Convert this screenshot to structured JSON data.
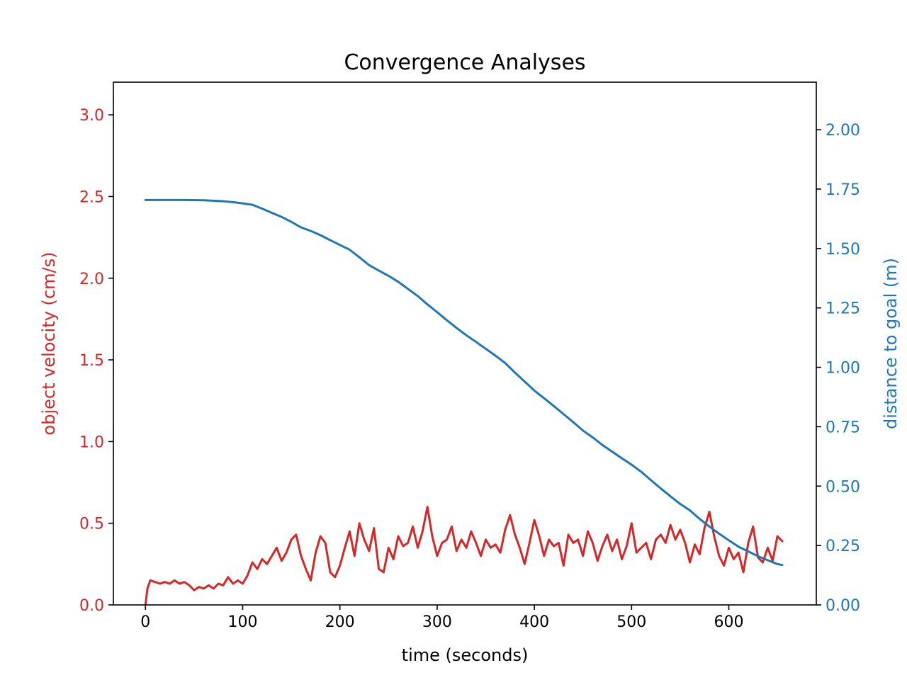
{
  "chart_data": {
    "type": "line",
    "title": "Convergence Analyses",
    "xlabel": "time (seconds)",
    "ylabel_left": "object velocity (cm/s)",
    "ylabel_right": "distance to goal (m)",
    "xlim": [
      -33,
      690
    ],
    "ylim_left": [
      0.0,
      3.2
    ],
    "ylim_right": [
      0.0,
      2.2
    ],
    "x_ticks": [
      0,
      100,
      200,
      300,
      400,
      500,
      600
    ],
    "x_tick_labels": [
      "0",
      "100",
      "200",
      "300",
      "400",
      "500",
      "600"
    ],
    "y_left_ticks": [
      0.0,
      0.5,
      1.0,
      1.5,
      2.0,
      2.5,
      3.0
    ],
    "y_left_tick_labels": [
      "0.0",
      "0.5",
      "1.0",
      "1.5",
      "2.0",
      "2.5",
      "3.0"
    ],
    "y_right_ticks": [
      0.0,
      0.25,
      0.5,
      0.75,
      1.0,
      1.25,
      1.5,
      1.75,
      2.0
    ],
    "y_right_tick_labels": [
      "0.00",
      "0.25",
      "0.50",
      "0.75",
      "1.00",
      "1.25",
      "1.50",
      "1.75",
      "2.00"
    ],
    "grid": false,
    "colors": {
      "velocity": "#d62728",
      "distance": "#1f77b4",
      "axes": "#000000"
    },
    "series": [
      {
        "axis": "left",
        "x": [
          0,
          2,
          5,
          10,
          15,
          20,
          25,
          30,
          35,
          40,
          45,
          50,
          55,
          60,
          65,
          70,
          75,
          80,
          85,
          90,
          95,
          100,
          105,
          110,
          115,
          120,
          125,
          130,
          135,
          140,
          145,
          150,
          155,
          160,
          165,
          170,
          175,
          180,
          185,
          190,
          195,
          200,
          205,
          210,
          215,
          220,
          225,
          230,
          235,
          240,
          245,
          250,
          255,
          260,
          265,
          270,
          275,
          280,
          285,
          290,
          295,
          300,
          305,
          310,
          315,
          320,
          325,
          330,
          335,
          340,
          345,
          350,
          355,
          360,
          365,
          370,
          375,
          380,
          385,
          390,
          395,
          400,
          405,
          410,
          415,
          420,
          425,
          430,
          435,
          440,
          445,
          450,
          455,
          460,
          465,
          470,
          475,
          480,
          485,
          490,
          495,
          500,
          505,
          510,
          515,
          520,
          525,
          530,
          535,
          540,
          545,
          550,
          555,
          560,
          565,
          570,
          575,
          580,
          585,
          590,
          595,
          600,
          605,
          610,
          615,
          620,
          625,
          630,
          635,
          640,
          645,
          650,
          655
        ],
        "values": [
          0.0,
          0.1,
          0.15,
          0.14,
          0.13,
          0.14,
          0.13,
          0.15,
          0.13,
          0.14,
          0.12,
          0.09,
          0.11,
          0.1,
          0.12,
          0.1,
          0.13,
          0.12,
          0.17,
          0.13,
          0.15,
          0.13,
          0.18,
          0.26,
          0.22,
          0.28,
          0.25,
          0.3,
          0.35,
          0.27,
          0.32,
          0.4,
          0.43,
          0.3,
          0.22,
          0.15,
          0.32,
          0.42,
          0.38,
          0.2,
          0.17,
          0.24,
          0.35,
          0.45,
          0.3,
          0.5,
          0.4,
          0.33,
          0.47,
          0.22,
          0.2,
          0.35,
          0.28,
          0.42,
          0.36,
          0.38,
          0.48,
          0.35,
          0.45,
          0.6,
          0.42,
          0.3,
          0.38,
          0.4,
          0.48,
          0.33,
          0.4,
          0.35,
          0.45,
          0.38,
          0.3,
          0.4,
          0.35,
          0.37,
          0.32,
          0.46,
          0.55,
          0.43,
          0.35,
          0.25,
          0.38,
          0.52,
          0.42,
          0.3,
          0.4,
          0.36,
          0.38,
          0.24,
          0.43,
          0.38,
          0.4,
          0.3,
          0.45,
          0.38,
          0.27,
          0.36,
          0.43,
          0.33,
          0.4,
          0.28,
          0.36,
          0.5,
          0.32,
          0.35,
          0.38,
          0.28,
          0.4,
          0.43,
          0.38,
          0.49,
          0.4,
          0.46,
          0.38,
          0.26,
          0.37,
          0.31,
          0.47,
          0.57,
          0.42,
          0.3,
          0.24,
          0.35,
          0.28,
          0.32,
          0.2,
          0.38,
          0.48,
          0.29,
          0.26,
          0.35,
          0.27,
          0.42,
          0.39
        ]
      },
      {
        "axis": "right",
        "x": [
          0,
          20,
          40,
          60,
          80,
          90,
          100,
          110,
          120,
          130,
          140,
          150,
          160,
          170,
          180,
          190,
          200,
          210,
          220,
          230,
          240,
          250,
          260,
          270,
          280,
          290,
          300,
          310,
          320,
          330,
          340,
          350,
          360,
          370,
          380,
          390,
          400,
          410,
          420,
          430,
          440,
          450,
          460,
          470,
          480,
          490,
          500,
          510,
          520,
          530,
          540,
          550,
          560,
          570,
          580,
          590,
          600,
          610,
          620,
          630,
          640,
          650,
          655
        ],
        "values": [
          1.704,
          1.704,
          1.704,
          1.703,
          1.699,
          1.695,
          1.69,
          1.684,
          1.668,
          1.65,
          1.633,
          1.612,
          1.589,
          1.574,
          1.556,
          1.535,
          1.515,
          1.495,
          1.463,
          1.43,
          1.407,
          1.385,
          1.36,
          1.33,
          1.3,
          1.265,
          1.232,
          1.198,
          1.166,
          1.135,
          1.107,
          1.078,
          1.049,
          1.018,
          0.978,
          0.94,
          0.902,
          0.87,
          0.837,
          0.803,
          0.769,
          0.734,
          0.705,
          0.673,
          0.645,
          0.617,
          0.59,
          0.56,
          0.525,
          0.49,
          0.457,
          0.425,
          0.398,
          0.362,
          0.33,
          0.3,
          0.272,
          0.245,
          0.225,
          0.205,
          0.188,
          0.172,
          0.168
        ]
      }
    ]
  }
}
